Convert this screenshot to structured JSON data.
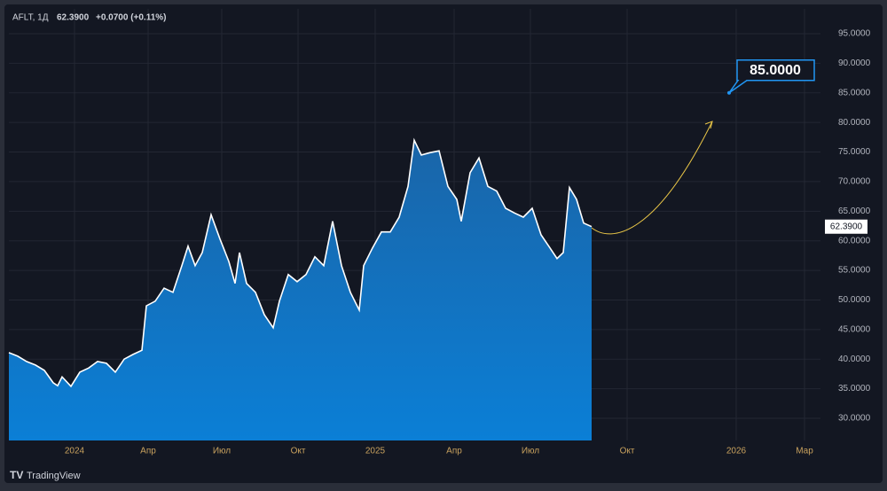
{
  "chart_data": {
    "type": "area",
    "symbol": "AFLT, 1Д",
    "last_price": "62.3900",
    "change": "+0.0700 (+0.11%)",
    "x": [
      -74,
      -64,
      -54,
      -44,
      -34,
      -24,
      -19,
      -14,
      -4,
      6,
      16,
      26,
      36,
      46,
      56,
      66,
      76,
      81,
      91,
      101,
      111,
      121,
      128,
      136,
      144,
      154,
      164,
      174,
      181,
      186,
      194,
      204,
      214,
      224,
      231,
      241,
      251,
      261,
      271,
      281,
      291,
      301,
      311,
      321,
      326,
      336,
      346,
      356,
      366,
      376,
      383,
      391,
      401,
      411,
      421,
      431,
      436,
      446,
      456,
      466,
      476,
      486,
      496,
      506,
      516,
      526,
      536,
      544,
      551,
      558,
      566,
      574,
      583
    ],
    "series": [
      {
        "name": "AFLT",
        "color": "#1572bb",
        "values": [
          41.1,
          40.5,
          39.6,
          39.0,
          38.1,
          36.0,
          35.5,
          37.0,
          35.4,
          37.8,
          38.5,
          39.6,
          39.3,
          37.8,
          40.0,
          40.8,
          41.5,
          49.0,
          49.8,
          52.0,
          51.3,
          55.8,
          59.1,
          55.8,
          58.0,
          64.4,
          60.3,
          56.5,
          52.8,
          58.0,
          52.8,
          51.3,
          47.5,
          45.3,
          49.8,
          54.3,
          53.1,
          54.3,
          57.3,
          55.8,
          63.3,
          55.8,
          51.3,
          48.3,
          55.8,
          58.8,
          61.5,
          61.5,
          64.0,
          69.2,
          77.0,
          74.5,
          74.9,
          75.2,
          69.2,
          67.0,
          63.3,
          71.5,
          74.0,
          69.2,
          68.4,
          65.5,
          64.7,
          64.0,
          65.5,
          61.0,
          58.8,
          57.0,
          58.0,
          69.0,
          67.0,
          63.0,
          62.39
        ]
      }
    ],
    "xlim": [
      -74,
      841
    ],
    "xticks": [
      {
        "value": 0,
        "label": "2024"
      },
      {
        "value": 83,
        "label": "Апр"
      },
      {
        "value": 166,
        "label": "Июл"
      },
      {
        "value": 252,
        "label": "Окт"
      },
      {
        "value": 339,
        "label": "2025"
      },
      {
        "value": 428,
        "label": "Апр"
      },
      {
        "value": 514,
        "label": "Июл"
      },
      {
        "value": 623,
        "label": "Окт"
      },
      {
        "value": 746,
        "label": "2026"
      },
      {
        "value": 823,
        "label": "Мар"
      }
    ],
    "ylim": [
      26.25,
      99.2
    ],
    "yticks": [
      {
        "value": 30,
        "label": "30.0000"
      },
      {
        "value": 35,
        "label": "35.0000"
      },
      {
        "value": 40,
        "label": "40.0000"
      },
      {
        "value": 45,
        "label": "45.0000"
      },
      {
        "value": 50,
        "label": "50.0000"
      },
      {
        "value": 55,
        "label": "55.0000"
      },
      {
        "value": 60,
        "label": "60.0000"
      },
      {
        "value": 65,
        "label": "65.0000"
      },
      {
        "value": 70,
        "label": "70.0000"
      },
      {
        "value": 75,
        "label": "75.0000"
      },
      {
        "value": 80,
        "label": "80.0000"
      },
      {
        "value": 85,
        "label": "85.0000"
      },
      {
        "value": 90,
        "label": "90.0000"
      },
      {
        "value": 95,
        "label": "95.0000"
      }
    ],
    "price_tag": {
      "value": 62.39,
      "label": "62.3900"
    },
    "annotation": {
      "x": 738,
      "value": 85,
      "label": "85.0000"
    },
    "grid": true,
    "brand": "TradingView"
  }
}
